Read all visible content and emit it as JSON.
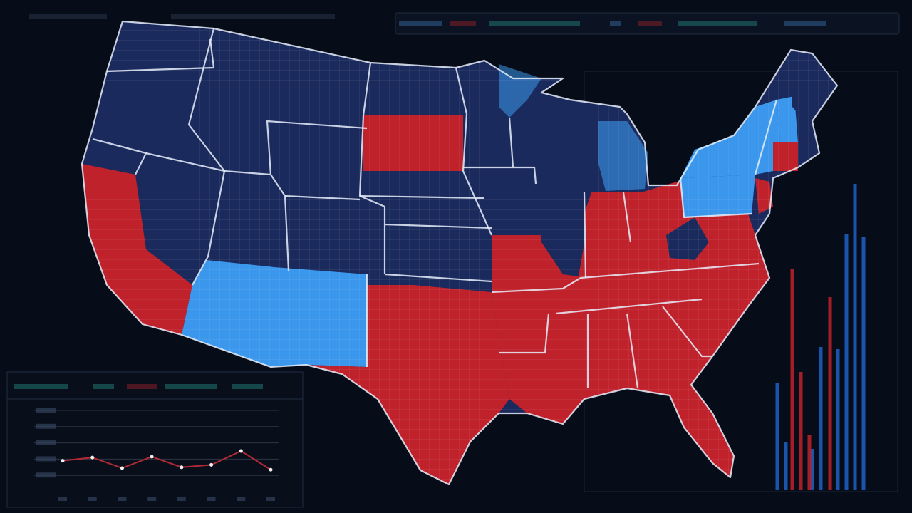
{
  "map": {
    "colors": [
      "#1b2a5c",
      "#c0222c",
      "#3b97ec"
    ]
  },
  "chart_data": [
    {
      "type": "line",
      "color": "#b02a35",
      "values": [
        38,
        42,
        29,
        43,
        30,
        33,
        50,
        27
      ],
      "ylim": [
        0,
        100
      ],
      "yticks": [
        20,
        40,
        60,
        80,
        100
      ]
    },
    {
      "type": "bar",
      "ylim": [
        0,
        500
      ],
      "series": [
        {
          "color": "#1f62c8",
          "values": [
            151,
            68,
            58,
            201,
            198,
            360,
            430,
            355
          ]
        },
        {
          "color": "#c0222c",
          "values": [
            311,
            166,
            78,
            271
          ]
        }
      ]
    }
  ]
}
